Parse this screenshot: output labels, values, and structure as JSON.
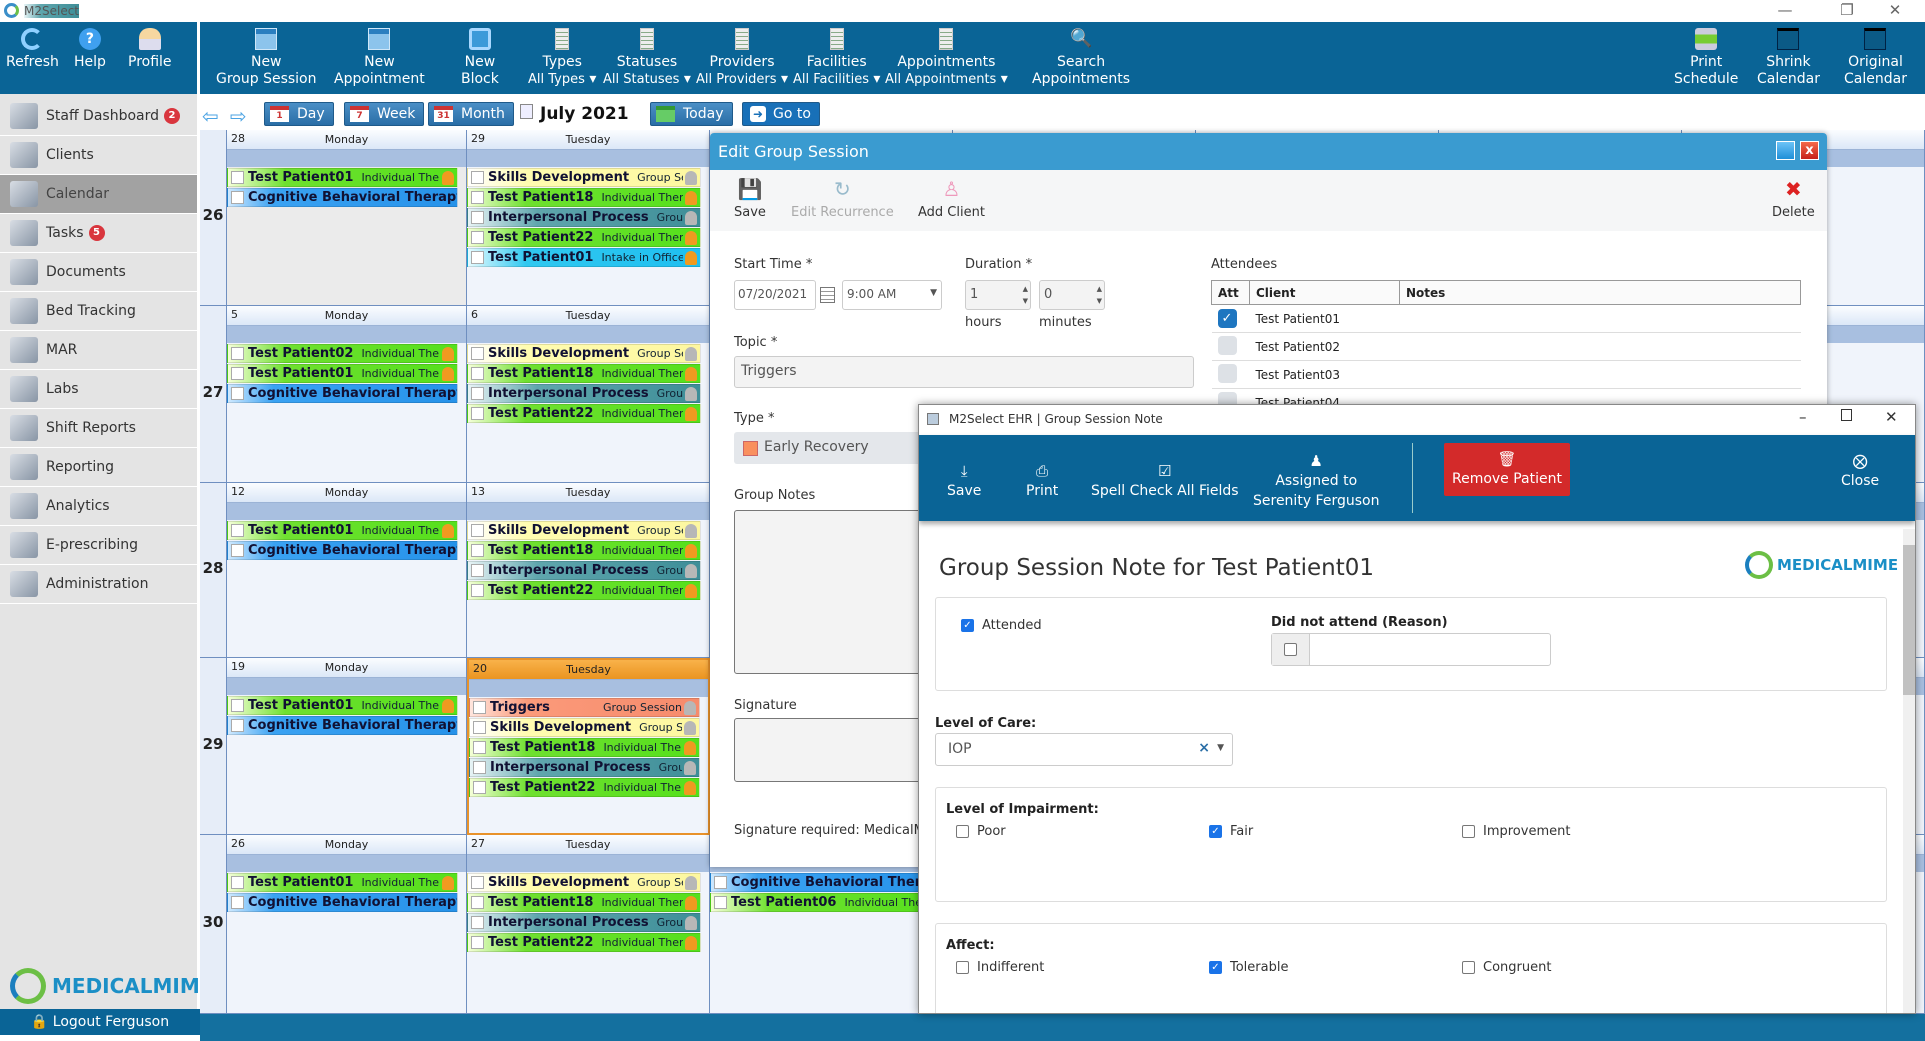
{
  "app": {
    "title": "M2Select"
  },
  "left_toolbar": [
    {
      "label": "Refresh",
      "icon": "refresh-icon"
    },
    {
      "label": "Help",
      "icon": "help-icon"
    },
    {
      "label": "Profile",
      "icon": "profile-icon"
    }
  ],
  "toolbar": {
    "new_group_session": [
      "New",
      "Group Session"
    ],
    "new_appointment": [
      "New",
      "Appointment"
    ],
    "new_block": [
      "New",
      "Block"
    ],
    "types": [
      "Types",
      "All Types"
    ],
    "statuses": [
      "Statuses",
      "All Statuses"
    ],
    "providers": [
      "Providers",
      "All Providers"
    ],
    "facilities": [
      "Facilities",
      "All Facilities"
    ],
    "appointments": [
      "Appointments",
      "All Appointments"
    ],
    "search": [
      "Search",
      "Appointments"
    ],
    "print": [
      "Print",
      "Schedule"
    ],
    "shrink": [
      "Shrink",
      "Calendar"
    ],
    "original": [
      "Original",
      "Calendar"
    ]
  },
  "sidebar": {
    "items": [
      {
        "label": "Staff Dashboard",
        "badge": "2"
      },
      {
        "label": "Clients"
      },
      {
        "label": "Calendar",
        "selected": true
      },
      {
        "label": "Tasks",
        "badge": "5"
      },
      {
        "label": "Documents"
      },
      {
        "label": "Bed Tracking"
      },
      {
        "label": "MAR"
      },
      {
        "label": "Labs"
      },
      {
        "label": "Shift Reports"
      },
      {
        "label": "Reporting"
      },
      {
        "label": "Analytics"
      },
      {
        "label": "E-prescribing"
      },
      {
        "label": "Administration"
      }
    ],
    "logo": "MEDICALMIME",
    "logout": "Logout Ferguson"
  },
  "nav": {
    "day": "Day",
    "week": "Week",
    "month": "Month",
    "day_icon": "1",
    "week_icon": "7",
    "month_icon": "31",
    "current": "July 2021",
    "today": "Today",
    "goto": "Go to"
  },
  "calendar": {
    "weeks": [
      {
        "num": "26",
        "days": [
          {
            "date": "28",
            "name": "Monday",
            "out": true,
            "events": [
              [
                "g",
                "Test Patient01",
                "Individual Thera..",
                "po"
              ],
              [
                "b",
                "Cognitive Behavioral Therapy",
                "",
                "pg"
              ]
            ]
          },
          {
            "date": "29",
            "name": "Tuesday",
            "events": [
              [
                "y",
                "Skills Development",
                "Group Ses..",
                "pg"
              ],
              [
                "g",
                "Test Patient18",
                "Individual Thera..",
                "po"
              ],
              [
                "t",
                "Interpersonal Process",
                "Group ..",
                "pg"
              ],
              [
                "g",
                "Test Patient22",
                "Individual Thera..",
                "po"
              ],
              [
                "c",
                "Test Patient01",
                "Intake in Office",
                "po"
              ]
            ]
          }
        ]
      },
      {
        "num": "27",
        "days": [
          {
            "date": "5",
            "name": "Monday",
            "events": [
              [
                "g",
                "Test Patient02",
                "Individual Thera..",
                "po"
              ],
              [
                "g",
                "Test Patient01",
                "Individual Thera..",
                "po"
              ],
              [
                "b",
                "Cognitive Behavioral Therapy",
                "",
                "pg"
              ]
            ]
          },
          {
            "date": "6",
            "name": "Tuesday",
            "events": [
              [
                "y",
                "Skills Development",
                "Group Ses..",
                "pg"
              ],
              [
                "g",
                "Test Patient18",
                "Individual Thera..",
                "po"
              ],
              [
                "t",
                "Interpersonal Process",
                "Group ..",
                "pg"
              ],
              [
                "g",
                "Test Patient22",
                "Individual Thera..",
                "po"
              ]
            ]
          }
        ]
      },
      {
        "num": "28",
        "days": [
          {
            "date": "12",
            "name": "Monday",
            "events": [
              [
                "g",
                "Test Patient01",
                "Individual Thera..",
                "po"
              ],
              [
                "b",
                "Cognitive Behavioral Therapy",
                "",
                "pg"
              ]
            ]
          },
          {
            "date": "13",
            "name": "Tuesday",
            "events": [
              [
                "y",
                "Skills Development",
                "Group Ses..",
                "pg"
              ],
              [
                "g",
                "Test Patient18",
                "Individual Thera..",
                "po"
              ],
              [
                "t",
                "Interpersonal Process",
                "Group ..",
                "pg"
              ],
              [
                "g",
                "Test Patient22",
                "Individual Thera..",
                "po"
              ]
            ]
          }
        ]
      },
      {
        "num": "29",
        "days": [
          {
            "date": "19",
            "name": "Monday",
            "events": [
              [
                "g",
                "Test Patient01",
                "Individual Thera..",
                "po"
              ],
              [
                "b",
                "Cognitive Behavioral Therapy",
                "",
                "pg"
              ]
            ]
          },
          {
            "date": "20",
            "name": "Tuesday",
            "today": true,
            "events": [
              [
                "s",
                "Triggers",
                "Group Session",
                "pg"
              ],
              [
                "y",
                "Skills Development",
                "Group Ses..",
                "pg"
              ],
              [
                "g",
                "Test Patient18",
                "Individual Thera..",
                "po"
              ],
              [
                "t",
                "Interpersonal Process",
                "Group ..",
                "pg"
              ],
              [
                "g",
                "Test Patient22",
                "Individual Thera..",
                "po"
              ]
            ]
          }
        ]
      },
      {
        "num": "30",
        "days": [
          {
            "date": "26",
            "name": "Monday",
            "events": [
              [
                "g",
                "Test Patient01",
                "Individual Thera..",
                "po"
              ],
              [
                "b",
                "Cognitive Behavioral Therapy",
                "",
                "pg"
              ]
            ]
          },
          {
            "date": "27",
            "name": "Tuesday",
            "events": [
              [
                "y",
                "Skills Development",
                "Group Ses..",
                "pg"
              ],
              [
                "g",
                "Test Patient18",
                "Individual Thera..",
                "po"
              ],
              [
                "t",
                "Interpersonal Process",
                "Group ..",
                "pg"
              ],
              [
                "g",
                "Test Patient22",
                "Individual Thera..",
                "po"
              ]
            ]
          },
          {
            "date": "",
            "name": "",
            "events": [
              [
                "b",
                "Cognitive Behavioral Therapy",
                "",
                "pg"
              ],
              [
                "g",
                "Test Patient06",
                "Individual Thera..",
                "po"
              ]
            ]
          }
        ]
      }
    ]
  },
  "edit_dialog": {
    "title": "Edit Group Session",
    "save": "Save",
    "edit_recurrence": "Edit Recurrence",
    "add_client": "Add Client",
    "delete": "Delete",
    "start_time_label": "Start Time",
    "date": "07/20/2021",
    "time": "9:00 AM",
    "duration_label": "Duration",
    "hours": "1",
    "minutes": "0",
    "hours_label": "hours",
    "minutes_label": "minutes",
    "topic_label": "Topic",
    "topic": "Triggers",
    "type_label": "Type",
    "type": "Early Recovery",
    "type_color": "#f9905e",
    "group_notes_label": "Group Notes",
    "signature_label": "Signature",
    "signature_required": "Signature required: MedicalMi",
    "attendees_label": "Attendees",
    "attendee_cols": [
      "Att",
      "Client",
      "Notes"
    ],
    "attendees": [
      {
        "name": "Test Patient01",
        "att": true
      },
      {
        "name": "Test Patient02",
        "att": false
      },
      {
        "name": "Test Patient03",
        "att": false
      },
      {
        "name": "Test Patient04",
        "att": false
      }
    ]
  },
  "note_window": {
    "title": "M2Select EHR | Group Session Note",
    "save": "Save",
    "print": "Print",
    "spell_check": "Spell Check All Fields",
    "assigned": [
      "Assigned to",
      "Serenity Ferguson"
    ],
    "remove": "Remove Patient",
    "close": "Close",
    "heading": "Group Session Note for Test Patient01",
    "logo": "MEDICALMIME",
    "attended": "Attended",
    "attended_checked": true,
    "did_not_attend_label": "Did not attend (Reason)",
    "did_not_attend_value": "",
    "level_of_care_label": "Level of Care:",
    "level_of_care": "IOP",
    "impairment_label": "Level of Impairment:",
    "impairment": [
      {
        "label": "Poor",
        "checked": false
      },
      {
        "label": "Fair",
        "checked": true
      },
      {
        "label": "Improvement",
        "checked": false
      }
    ],
    "affect_label": "Affect:",
    "affect": [
      {
        "label": "Indifferent",
        "checked": false
      },
      {
        "label": "Tolerable",
        "checked": true
      },
      {
        "label": "Congruent",
        "checked": false
      }
    ]
  }
}
